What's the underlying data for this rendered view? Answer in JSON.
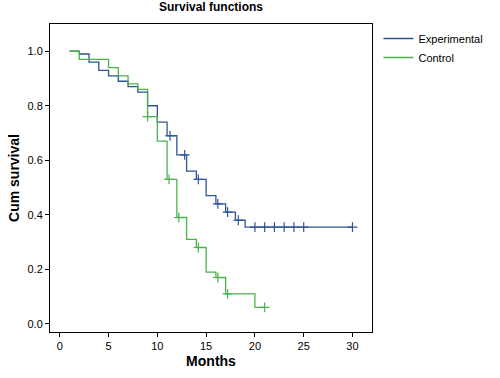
{
  "chart_data": {
    "type": "line",
    "title": "Survival functions",
    "x_label": "Months",
    "y_label": "Cum survival",
    "line_style": "step",
    "marker": "cross",
    "grid": false,
    "legend": "top-right",
    "xlim": [
      -1,
      32
    ],
    "xticks": [
      0,
      5,
      10,
      15,
      20,
      25,
      30
    ],
    "ylim": [
      -0.03,
      1.1
    ],
    "yticks": [
      {
        "value": 0,
        "label": "0.0"
      },
      {
        "value": 0.2,
        "label": "0.2"
      },
      {
        "value": 0.4,
        "label": "0.4"
      },
      {
        "value": 0.6,
        "label": "0.6"
      },
      {
        "value": 0.8,
        "label": "0.8"
      },
      {
        "value": 1,
        "label": "1.0"
      }
    ],
    "series": [
      {
        "name": "Experimental",
        "color": "#2f5597",
        "x": [
          1,
          2,
          3,
          4,
          5,
          6,
          7,
          8,
          9,
          10,
          11,
          12,
          13,
          14,
          15,
          16,
          17,
          18,
          19,
          30
        ],
        "values": [
          1.0,
          0.99,
          0.96,
          0.93,
          0.91,
          0.89,
          0.87,
          0.85,
          0.8,
          0.74,
          0.69,
          0.62,
          0.56,
          0.53,
          0.47,
          0.44,
          0.41,
          0.38,
          0.355,
          0.355
        ],
        "censored_x": [
          11.3,
          12.8,
          14.2,
          16.2,
          17.2,
          18.3,
          20,
          21,
          22,
          23,
          24,
          25,
          30
        ],
        "censored_values": [
          0.69,
          0.62,
          0.53,
          0.44,
          0.41,
          0.38,
          0.355,
          0.355,
          0.355,
          0.355,
          0.355,
          0.355,
          0.355
        ]
      },
      {
        "name": "Control",
        "color": "#4cb34c",
        "x": [
          1,
          2,
          5,
          6,
          7,
          8,
          9,
          10,
          11,
          12,
          13,
          14,
          15,
          16,
          17,
          20,
          21
        ],
        "values": [
          1.0,
          0.97,
          0.94,
          0.91,
          0.88,
          0.86,
          0.76,
          0.67,
          0.53,
          0.39,
          0.31,
          0.28,
          0.19,
          0.17,
          0.11,
          0.06,
          0.06
        ],
        "censored_x": [
          9,
          11.2,
          12.2,
          14.2,
          16.2,
          17.2,
          21
        ],
        "censored_values": [
          0.76,
          0.53,
          0.39,
          0.28,
          0.17,
          0.11,
          0.06
        ]
      }
    ]
  }
}
